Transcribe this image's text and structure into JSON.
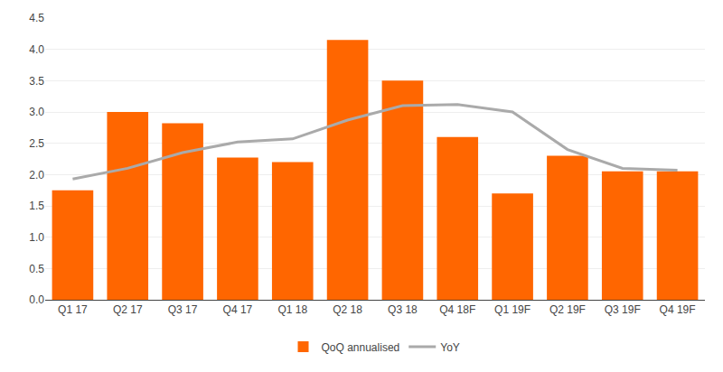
{
  "chart_data": {
    "type": "bar",
    "categories": [
      "Q1 17",
      "Q2 17",
      "Q3 17",
      "Q4 17",
      "Q1 18",
      "Q2 18",
      "Q3 18",
      "Q4 18F",
      "Q1 19F",
      "Q2 19F",
      "Q3 19F",
      "Q4 19F"
    ],
    "series": [
      {
        "name": "QoQ annualised",
        "type": "bar",
        "color": "#FF6600",
        "values": [
          1.75,
          3.0,
          2.82,
          2.27,
          2.2,
          4.15,
          3.5,
          2.6,
          1.7,
          2.3,
          2.05,
          2.05
        ]
      },
      {
        "name": "YoY",
        "type": "line",
        "color": "#aaaaaa",
        "values": [
          1.93,
          2.1,
          2.35,
          2.52,
          2.57,
          2.87,
          3.1,
          3.12,
          3.0,
          2.4,
          2.1,
          2.07
        ]
      }
    ],
    "ylim": [
      0,
      4.5
    ],
    "yticks": [
      {
        "value": 0,
        "label": "0.0"
      },
      0.5,
      {
        "value": 1,
        "label": "1.0"
      },
      1.5,
      {
        "value": 2,
        "label": "2.0"
      },
      2.5,
      {
        "value": 3,
        "label": "3.0"
      },
      3.5,
      {
        "value": 4,
        "label": "4.0"
      },
      4.5
    ],
    "grid": true,
    "legend": "bottom"
  }
}
